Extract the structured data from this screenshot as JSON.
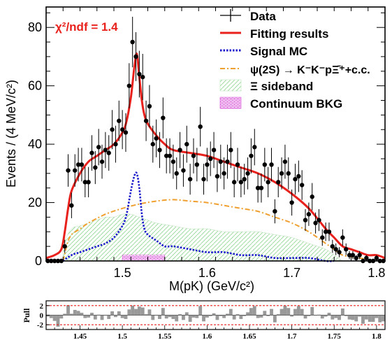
{
  "chart_data": [
    {
      "type": "histogram",
      "annotation": {
        "chi2": "χ²/ndf = 1.4"
      },
      "xlabel": "M(pK) (GeV/c²)",
      "ylabel": "Events / (4 MeV/c²)",
      "xlim": [
        1.41,
        1.81
      ],
      "ylim": [
        0,
        87
      ],
      "xticks": [
        "1.5",
        "1.6",
        "1.7",
        "1.8"
      ],
      "yticks": [
        "0",
        "20",
        "40",
        "60",
        "80"
      ],
      "legend_position": "top-right",
      "legend": [
        {
          "label": "Data",
          "style": "points"
        },
        {
          "label": "Fitting results",
          "style": "line",
          "color": "#e8211c"
        },
        {
          "label": "Signal MC",
          "style": "dotted",
          "color": "#1a1acc"
        },
        {
          "label": "ψ(2S) → K⁻K⁻pΞ̄⁺+c.c.",
          "style": "dashdot",
          "color": "#f0a030"
        },
        {
          "label": "Ξ sideband",
          "style": "hatch",
          "color": "#7ccf7c"
        },
        {
          "label": "Continuum BKG",
          "style": "grid",
          "color": "#d040d0"
        }
      ],
      "data": {
        "x": [
          1.412,
          1.416,
          1.42,
          1.424,
          1.428,
          1.432,
          1.436,
          1.44,
          1.444,
          1.448,
          1.452,
          1.456,
          1.46,
          1.464,
          1.468,
          1.472,
          1.476,
          1.48,
          1.484,
          1.488,
          1.492,
          1.496,
          1.5,
          1.504,
          1.508,
          1.512,
          1.516,
          1.52,
          1.524,
          1.528,
          1.532,
          1.536,
          1.54,
          1.544,
          1.548,
          1.552,
          1.556,
          1.56,
          1.564,
          1.568,
          1.572,
          1.576,
          1.58,
          1.584,
          1.588,
          1.592,
          1.596,
          1.6,
          1.604,
          1.608,
          1.612,
          1.616,
          1.62,
          1.624,
          1.628,
          1.632,
          1.636,
          1.64,
          1.644,
          1.648,
          1.652,
          1.656,
          1.66,
          1.664,
          1.668,
          1.672,
          1.676,
          1.68,
          1.684,
          1.688,
          1.692,
          1.696,
          1.7,
          1.704,
          1.708,
          1.712,
          1.716,
          1.72,
          1.724,
          1.728,
          1.732,
          1.736,
          1.74,
          1.744,
          1.748,
          1.752,
          1.756,
          1.76,
          1.764,
          1.768,
          1.772,
          1.776,
          1.78,
          1.784,
          1.788,
          1.792,
          1.796,
          1.8,
          1.804,
          1.808
        ],
        "y": [
          0,
          0,
          0,
          0,
          0,
          5,
          31,
          19,
          31,
          33,
          33,
          27,
          27,
          37,
          32,
          39,
          34,
          38,
          37,
          45,
          40,
          48,
          45,
          44,
          60,
          75,
          70,
          64,
          63,
          48,
          53,
          40,
          42,
          38,
          49,
          36,
          36,
          34,
          30,
          38,
          31,
          40,
          28,
          36,
          33,
          46,
          28,
          33,
          35,
          38,
          29,
          34,
          30,
          34,
          38,
          27,
          33,
          27,
          28,
          30,
          36,
          39,
          25,
          25,
          33,
          27,
          33,
          17,
          27,
          30,
          34,
          30,
          20,
          28,
          29,
          26,
          14,
          16,
          22,
          13,
          14,
          8,
          10,
          10,
          5,
          4,
          3,
          8,
          4,
          2,
          2,
          1,
          2,
          0,
          1,
          0,
          0,
          1,
          0,
          0
        ]
      },
      "fit": {
        "x": [
          1.41,
          1.42,
          1.428,
          1.432,
          1.436,
          1.44,
          1.45,
          1.46,
          1.47,
          1.48,
          1.49,
          1.5,
          1.505,
          1.51,
          1.514,
          1.517,
          1.52,
          1.523,
          1.526,
          1.53,
          1.54,
          1.55,
          1.56,
          1.58,
          1.6,
          1.62,
          1.64,
          1.66,
          1.68,
          1.7,
          1.72,
          1.74,
          1.75,
          1.76,
          1.77,
          1.78,
          1.79,
          1.8,
          1.81
        ],
        "y": [
          1,
          2,
          4,
          10,
          18,
          24,
          30,
          34,
          36,
          38,
          40,
          44,
          48,
          56,
          66,
          71,
          63,
          55,
          50,
          47,
          43,
          40,
          38,
          37,
          36,
          34,
          32,
          30,
          27,
          23,
          18,
          11,
          8,
          5,
          4,
          3,
          2,
          2,
          1
        ]
      },
      "signal_mc": {
        "x": [
          1.43,
          1.44,
          1.45,
          1.46,
          1.47,
          1.48,
          1.49,
          1.5,
          1.505,
          1.51,
          1.514,
          1.517,
          1.52,
          1.523,
          1.526,
          1.53,
          1.54,
          1.55,
          1.56,
          1.58,
          1.6,
          1.62,
          1.64,
          1.66,
          1.68,
          1.7,
          1.72,
          1.74,
          1.75
        ],
        "y": [
          0,
          2,
          3,
          4,
          5,
          6,
          8,
          12,
          16,
          24,
          29,
          30,
          25,
          16,
          11,
          9,
          7,
          5,
          5,
          4,
          3,
          3,
          2,
          2,
          1,
          1,
          1,
          0,
          0
        ]
      },
      "psi2s_bkg": {
        "x": [
          1.43,
          1.435,
          1.44,
          1.45,
          1.46,
          1.48,
          1.5,
          1.52,
          1.54,
          1.56,
          1.58,
          1.6,
          1.62,
          1.64,
          1.66,
          1.68,
          1.7,
          1.72,
          1.74,
          1.75,
          1.76,
          1.78,
          1.8
        ],
        "y": [
          0,
          6,
          9,
          11,
          13,
          16,
          18,
          19.5,
          20.5,
          21,
          20.5,
          20,
          19,
          18,
          17,
          15,
          13,
          10,
          6,
          4,
          2,
          1,
          0
        ]
      },
      "xi_sideband": {
        "x": [
          1.43,
          1.44,
          1.45,
          1.46,
          1.47,
          1.48,
          1.49,
          1.5,
          1.51,
          1.52,
          1.53,
          1.54,
          1.56,
          1.58,
          1.6,
          1.62,
          1.64,
          1.66,
          1.68,
          1.7,
          1.72,
          1.74,
          1.75,
          1.76
        ],
        "y": [
          6,
          11,
          12,
          13,
          14,
          15,
          15,
          16,
          16,
          15,
          14,
          13,
          12,
          11,
          11,
          10,
          10,
          10,
          9,
          8,
          6,
          4,
          2,
          0
        ]
      },
      "continuum": {
        "x": [
          1.5,
          1.51,
          1.52,
          1.53,
          1.54,
          1.55
        ],
        "y": [
          2,
          2,
          2,
          2,
          2,
          2
        ]
      }
    },
    {
      "type": "bar",
      "ylabel": "Pull",
      "xlim": [
        1.41,
        1.81
      ],
      "ylim": [
        -3,
        3
      ],
      "yticks": [
        "2",
        "0",
        "-2"
      ],
      "xticks": [
        "1.45",
        "1.5",
        "1.55",
        "1.6",
        "1.65",
        "1.7",
        "1.75",
        "1.8"
      ],
      "pull_values": [
        -0.3,
        -0.6,
        -1.2,
        -2.4,
        -0.7,
        0.3,
        2.1,
        0.3,
        1.1,
        0.9,
        0.5,
        -0.6,
        -0.5,
        0.5,
        -0.9,
        0.1,
        -1.0,
        -0.1,
        -0.8,
        0.8,
        -0.4,
        0.8,
        -0.6,
        -0.8,
        1.2,
        2.0,
        1.3,
        1.8,
        1.6,
        0.2,
        1.2,
        -1.0,
        -0.1,
        -0.8,
        1.5,
        -0.7,
        -0.4,
        -0.8,
        -1.3,
        0.2,
        -1.0,
        0.6,
        -1.4,
        -0.5,
        -0.6,
        1.9,
        -1.3,
        -0.5,
        -0.2,
        0.4,
        -1.0,
        -0.2,
        -0.6,
        0.3,
        1.3,
        -0.9,
        0.2,
        -0.8,
        -0.2,
        0.6,
        1.5,
        1.9,
        -0.6,
        -0.5,
        0.9,
        -0.2,
        1.3,
        -1.5,
        0.2,
        1.3,
        2.0,
        1.5,
        -0.3,
        1.3,
        1.9,
        1.3,
        -0.7,
        -0.2,
        1.7,
        -0.1,
        0.1,
        -0.7,
        -0.3,
        0.5,
        -0.9,
        -0.6,
        -1.0,
        1.4,
        -0.2,
        -0.9,
        -1.0,
        -1.3,
        -0.3,
        -1.8,
        -0.9,
        -1.4,
        -1.4,
        -0.6,
        -1.5,
        -1.3
      ]
    }
  ]
}
